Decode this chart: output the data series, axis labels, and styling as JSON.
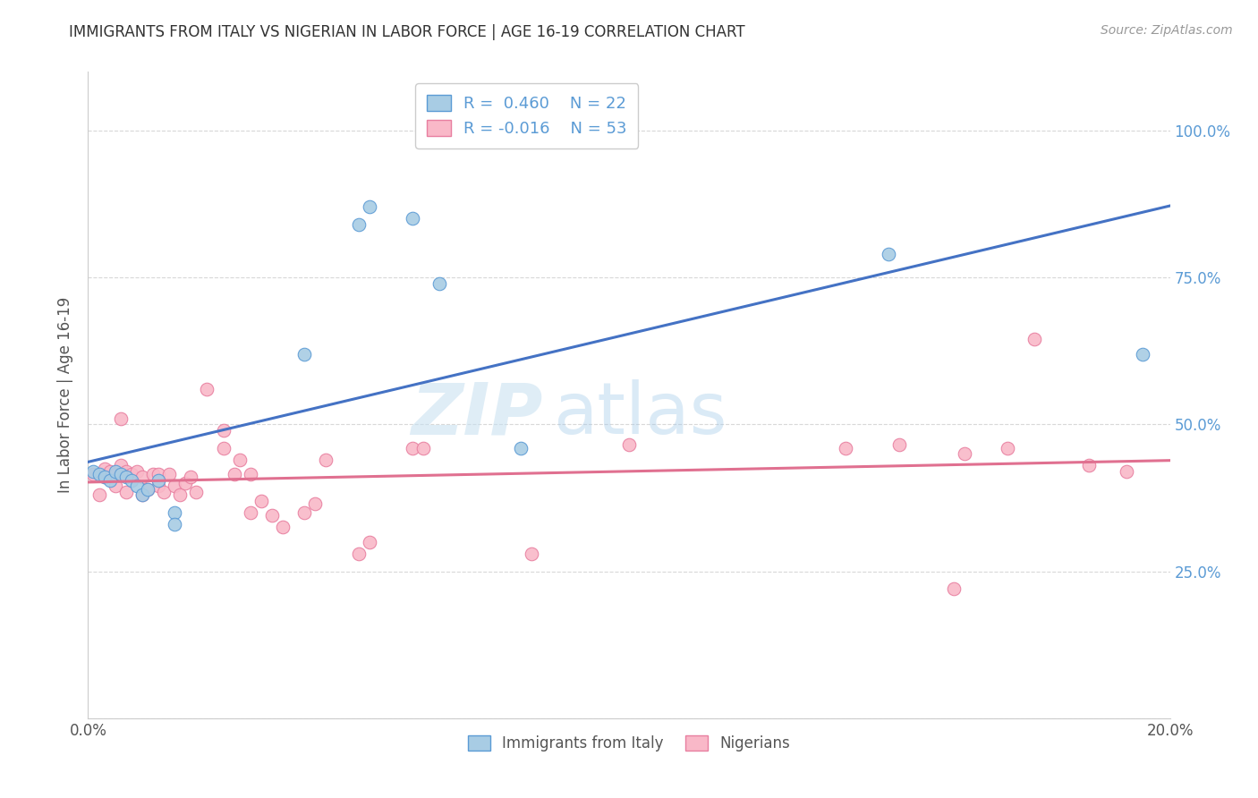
{
  "title": "IMMIGRANTS FROM ITALY VS NIGERIAN IN LABOR FORCE | AGE 16-19 CORRELATION CHART",
  "source": "Source: ZipAtlas.com",
  "ylabel": "In Labor Force | Age 16-19",
  "x_min": 0.0,
  "x_max": 0.2,
  "y_min": 0.0,
  "y_max": 1.1,
  "x_ticks": [
    0.0,
    0.04,
    0.08,
    0.12,
    0.16,
    0.2
  ],
  "x_tick_labels": [
    "0.0%",
    "",
    "",
    "",
    "",
    "20.0%"
  ],
  "y_ticks": [
    0.0,
    0.25,
    0.5,
    0.75,
    1.0
  ],
  "y_tick_labels_right": [
    "",
    "25.0%",
    "50.0%",
    "75.0%",
    "100.0%"
  ],
  "italy_color": "#a8cce4",
  "nigeria_color": "#f9b8c8",
  "italy_edge_color": "#5b9bd5",
  "nigeria_edge_color": "#e87fa0",
  "italy_line_color": "#4472c4",
  "nigeria_line_color": "#e07090",
  "italy_R": 0.46,
  "italy_N": 22,
  "nigeria_R": -0.016,
  "nigeria_N": 53,
  "watermark_zip": "ZIP",
  "watermark_atlas": "atlas",
  "italy_points_x": [
    0.001,
    0.002,
    0.003,
    0.004,
    0.005,
    0.006,
    0.007,
    0.008,
    0.009,
    0.01,
    0.011,
    0.013,
    0.016,
    0.016,
    0.04,
    0.05,
    0.052,
    0.06,
    0.065,
    0.08,
    0.148,
    0.195
  ],
  "italy_points_y": [
    0.42,
    0.415,
    0.41,
    0.405,
    0.42,
    0.415,
    0.41,
    0.405,
    0.395,
    0.38,
    0.39,
    0.405,
    0.35,
    0.33,
    0.62,
    0.84,
    0.87,
    0.85,
    0.74,
    0.46,
    0.79,
    0.62
  ],
  "nigeria_points_x": [
    0.001,
    0.002,
    0.003,
    0.003,
    0.004,
    0.005,
    0.005,
    0.006,
    0.006,
    0.007,
    0.007,
    0.008,
    0.009,
    0.01,
    0.01,
    0.011,
    0.012,
    0.013,
    0.013,
    0.014,
    0.015,
    0.016,
    0.017,
    0.018,
    0.019,
    0.02,
    0.022,
    0.025,
    0.025,
    0.027,
    0.028,
    0.03,
    0.03,
    0.032,
    0.034,
    0.036,
    0.04,
    0.042,
    0.044,
    0.05,
    0.052,
    0.06,
    0.062,
    0.082,
    0.1,
    0.14,
    0.15,
    0.16,
    0.162,
    0.17,
    0.175,
    0.185,
    0.192
  ],
  "nigeria_points_y": [
    0.415,
    0.38,
    0.425,
    0.41,
    0.42,
    0.415,
    0.395,
    0.43,
    0.51,
    0.42,
    0.385,
    0.415,
    0.42,
    0.38,
    0.41,
    0.39,
    0.415,
    0.395,
    0.415,
    0.385,
    0.415,
    0.395,
    0.38,
    0.4,
    0.41,
    0.385,
    0.56,
    0.49,
    0.46,
    0.415,
    0.44,
    0.35,
    0.415,
    0.37,
    0.345,
    0.325,
    0.35,
    0.365,
    0.44,
    0.28,
    0.3,
    0.46,
    0.46,
    0.28,
    0.465,
    0.46,
    0.465,
    0.22,
    0.45,
    0.46,
    0.645,
    0.43,
    0.42
  ],
  "grid_color": "#d8d8d8",
  "tick_color": "#5b9bd5",
  "title_color": "#333333",
  "source_color": "#999999",
  "bg_color": "#ffffff"
}
